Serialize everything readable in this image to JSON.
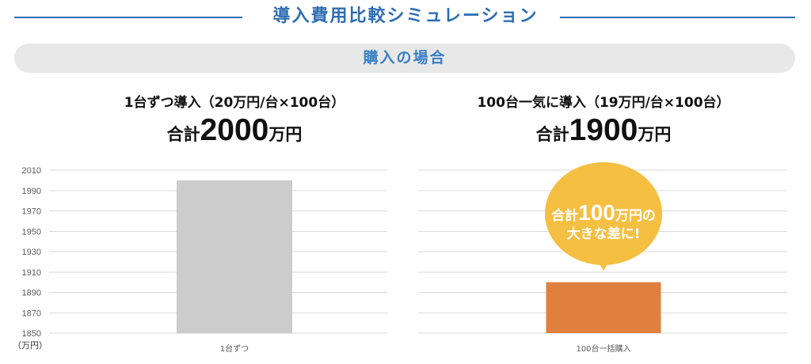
{
  "title": "導入費用比較シミュレーション",
  "section_label": "購入の場合",
  "colors": {
    "accent": "#2f6db3",
    "section_text": "#3a80c6",
    "pill_background": "#e8e8e8",
    "bubble": "#f5bf42",
    "bubble_text": "#ffffff"
  },
  "comparison": [
    {
      "heading": "1台ずつ導入（20万円/台×100台）",
      "total_prefix": "合計",
      "total_value": "2000",
      "total_unit": "万円"
    },
    {
      "heading": "100台一気に導入（19万円/台×100台）",
      "total_prefix": "合計",
      "total_value": "1900",
      "total_unit": "万円"
    }
  ],
  "callout": {
    "prefix": "合計",
    "value": "100",
    "suffix": "万円の",
    "line2": "大きな差に!"
  },
  "chart_data": [
    {
      "type": "bar",
      "categories": [
        "1台ずつ"
      ],
      "values": [
        2000
      ],
      "ylim": [
        1850,
        2010
      ],
      "yticks": [
        2010,
        1990,
        1970,
        1950,
        1930,
        1910,
        1890,
        1870,
        1850
      ],
      "ytick_labels_visible": true,
      "ylabel": "（万円）",
      "grid": true,
      "bar_color": "#cccccc"
    },
    {
      "type": "bar",
      "categories": [
        "100台一括購入"
      ],
      "values": [
        1900
      ],
      "ylim": [
        1850,
        2010
      ],
      "yticks": [
        2010,
        1990,
        1970,
        1950,
        1930,
        1910,
        1890,
        1870,
        1850
      ],
      "ytick_labels_visible": false,
      "grid": true,
      "bar_color": "#e0803f"
    }
  ]
}
